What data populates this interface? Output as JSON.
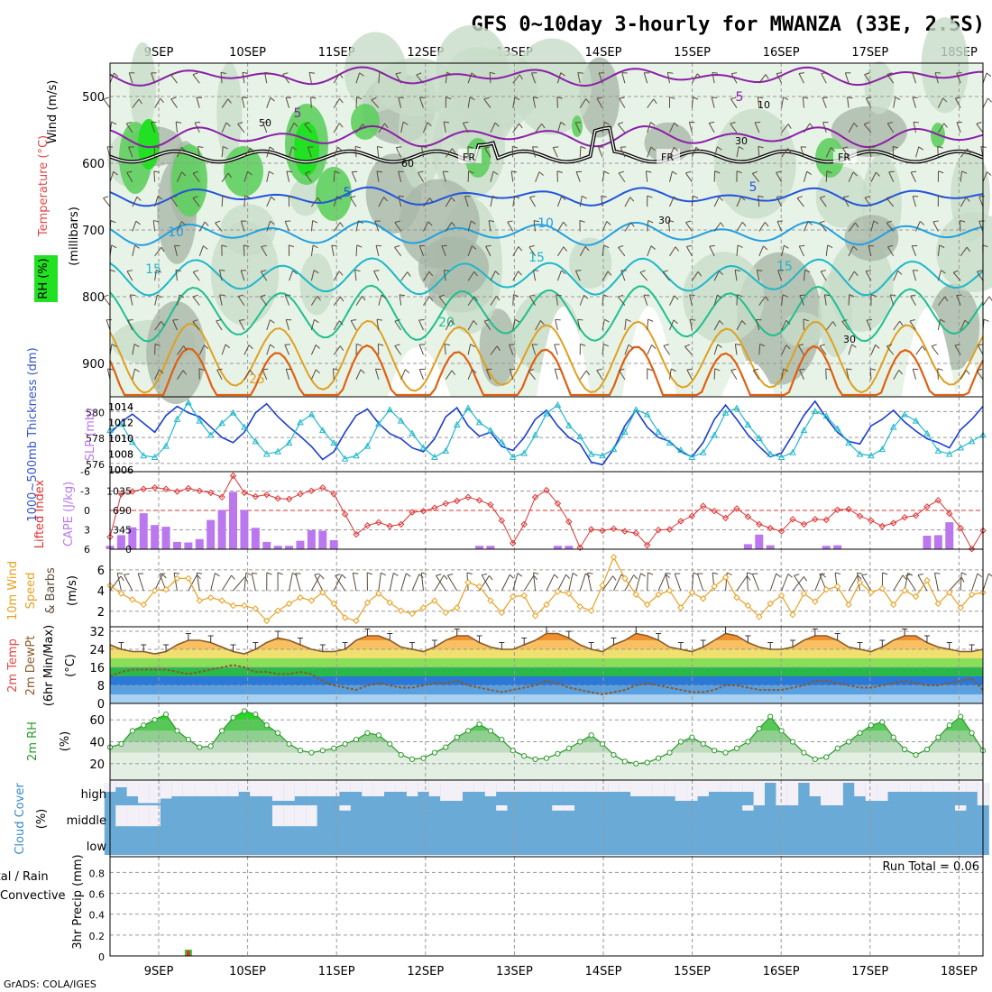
{
  "title": "GFS 0~10day 3-hourly for MWANZA (33E, 2.5S)",
  "credit": "GrADS: COLA/IGES",
  "colors": {
    "rh_light": "#e8f3e8",
    "rh_mid": "#c8dcc8",
    "rh_grey": "#a9b8a9",
    "rh_green": "#5fcf5f",
    "rh_bright": "#22e022",
    "t_purple": "#8b1fa8",
    "t_blue": "#2255dd",
    "t_lightblue": "#22a0e0",
    "t_cyan": "#1db8c8",
    "t_teal": "#1fbf8f",
    "t_orange": "#e0a020",
    "t_darkorange": "#e06010",
    "t_magenta": "#d0107a",
    "freezing": "#000000",
    "thickness": "#1b3fd0",
    "slp": "#22b8cc",
    "lifted": "#dd3333",
    "cape": "#bb77ee",
    "wind_speed": "#e8a020",
    "barb": "#5a4a3a",
    "temp_fill": "#f07a10",
    "dewpt": "#8a5a2a",
    "rh_line": "#2a9a2a",
    "cloud": "#6aaad6",
    "precip_total": "#33cc33",
    "precip_conv": "#dd3333"
  },
  "chart_data": [
    {
      "panel": "upper-air",
      "type": "heatmap",
      "x": [
        "9SEP",
        "10SEP",
        "11SEP",
        "12SEP",
        "13SEP",
        "14SEP",
        "15SEP",
        "16SEP",
        "17SEP",
        "18SEP"
      ],
      "y_ticks": [
        "500",
        "600",
        "700",
        "800",
        "900"
      ],
      "ylabel_parts": [
        "Wind (m/s)",
        "Temperature (°C)",
        "(millibars)",
        "RH (%)"
      ],
      "ylim": [
        1000,
        450
      ],
      "isotherm_labels": [
        {
          "text": "5",
          "level": "near 500mb"
        },
        {
          "text": "5",
          "level": "near 650mb"
        },
        {
          "text": "10",
          "level": "near 700mb"
        },
        {
          "text": "15",
          "level": "near 760mb"
        },
        {
          "text": "20",
          "level": "near 840mb"
        },
        {
          "text": "25",
          "level": "near 930mb"
        }
      ],
      "rh_labels": [
        "50",
        "30",
        "10",
        "60",
        "30",
        "30"
      ],
      "freezing_label": "FR"
    },
    {
      "panel": "thickness-slp",
      "type": "line",
      "ylabel_left": "1000~500mb Thickness (dm)",
      "ylabel_right": "SLP (mb)",
      "left_ticks": [
        "580",
        "578",
        "576"
      ],
      "right_ticks": [
        "1014",
        "1012",
        "1010",
        "1008",
        "1006"
      ],
      "ylim_thickness": [
        575.5,
        581
      ],
      "ylim_slp": [
        1006,
        1015
      ],
      "thickness": [
        578.3,
        579.2,
        579.8,
        579.1,
        578.4,
        579.7,
        580.4,
        579.9,
        579.6,
        578.8,
        578.0,
        577.6,
        578.4,
        579.9,
        580.6,
        579.6,
        578.8,
        578.1,
        577.3,
        576.3,
        576.9,
        578.4,
        579.7,
        580.2,
        579.1,
        578.3,
        577.9,
        577.2,
        576.9,
        577.9,
        579.6,
        580.3,
        578.9,
        578.1,
        578.4,
        577.3,
        577.0,
        578.0,
        579.4,
        580.1,
        578.9,
        578.0,
        577.5,
        576.1,
        575.9,
        577.1,
        578.9,
        580.1,
        578.8,
        578.0,
        577.7,
        576.9,
        576.5,
        577.6,
        579.4,
        580.5,
        579.4,
        578.2,
        577.3,
        576.5,
        576.8,
        578.2,
        579.7,
        580.8,
        579.5,
        578.4,
        577.7,
        577.5,
        578.9,
        579.4,
        580.1,
        579.2,
        578.5,
        577.9,
        577.6,
        577.2,
        578.6,
        579.4,
        580.4
      ],
      "slp": [
        1011,
        1011.8,
        1009.5,
        1007.8,
        1007.6,
        1009,
        1012.4,
        1014.5,
        1012.2,
        1010.4,
        1011.9,
        1013.2,
        1011.4,
        1009.6,
        1008.0,
        1008.3,
        1009.4,
        1012.0,
        1013.0,
        1011.0,
        1009.4,
        1007.4,
        1007.8,
        1009.0,
        1011.8,
        1013.6,
        1012.2,
        1010.6,
        1008.8,
        1007.6,
        1008.4,
        1011.7,
        1013.8,
        1012.0,
        1011.0,
        1009.5,
        1007.6,
        1008.1,
        1010.4,
        1013.1,
        1014.2,
        1011.6,
        1010.2,
        1008.0,
        1007.8,
        1008.6,
        1010.8,
        1013.6,
        1013.0,
        1010.8,
        1009.4,
        1008.5,
        1007.6,
        1008.2,
        1010.4,
        1013.2,
        1013.8,
        1011.7,
        1010.0,
        1008.0,
        1007.6,
        1008.2,
        1011.0,
        1013.4,
        1012.8,
        1011.2,
        1009.4,
        1008.0,
        1007.8,
        1008.6,
        1011.4,
        1013.0,
        1012.2,
        1010.6,
        1008.4,
        1008.0,
        1008.8,
        1009.6,
        1010.4
      ]
    },
    {
      "panel": "stability",
      "type": "bar",
      "ylabel_left": "Lifted Index",
      "ylabel_right": "CAPE (J/kg)",
      "left_ticks": [
        "-6",
        "-3",
        "0",
        "3",
        "6"
      ],
      "right_ticks": [
        "1035",
        "690",
        "345",
        "0"
      ],
      "ylim_lifted": [
        6,
        -6
      ],
      "ylim_cape": [
        0,
        1380
      ],
      "lifted_index": [
        4.2,
        -2.6,
        -3.0,
        -3.4,
        -3.6,
        -3.4,
        -3.0,
        -3.5,
        -3.1,
        -2.8,
        -2.1,
        -5.5,
        -2.8,
        -2.2,
        -2.5,
        -1.9,
        -1.8,
        -2.6,
        -3.1,
        -3.6,
        -2.6,
        0.6,
        3.8,
        2.4,
        1.9,
        2.5,
        2.2,
        0.3,
        0.1,
        -0.4,
        -1.1,
        -1.5,
        -2.1,
        -1.6,
        -0.9,
        1.6,
        5.2,
        2.2,
        -2.1,
        -3.2,
        -1.1,
        1.8,
        5.9,
        3.0,
        3.2,
        2.9,
        3.3,
        3.6,
        5.5,
        3.1,
        3.0,
        1.7,
        0.9,
        -0.7,
        0.1,
        1.2,
        -0.3,
        1.0,
        2.2,
        2.8,
        3.3,
        1.4,
        2.2,
        1.4,
        1.5,
        -0.1,
        -0.2,
        0.9,
        1.6,
        2.5,
        2.0,
        1.1,
        0.8,
        -0.6,
        -1.6,
        0.5,
        2.8,
        6.1,
        3.2
      ],
      "cape": [
        60,
        250,
        390,
        640,
        430,
        400,
        130,
        120,
        180,
        520,
        700,
        1020,
        700,
        380,
        130,
        60,
        60,
        150,
        340,
        330,
        160,
        0,
        0,
        0,
        0,
        0,
        0,
        0,
        0,
        0,
        0,
        0,
        0,
        60,
        60,
        0,
        0,
        0,
        0,
        0,
        60,
        60,
        0,
        0,
        0,
        0,
        0,
        0,
        0,
        0,
        0,
        0,
        0,
        0,
        0,
        0,
        0,
        90,
        260,
        70,
        0,
        0,
        0,
        0,
        60,
        70,
        0,
        0,
        0,
        0,
        0,
        0,
        0,
        240,
        250,
        480,
        0,
        0,
        0
      ]
    },
    {
      "panel": "surface-wind",
      "type": "line",
      "ylabel": [
        "10m Wind",
        "Speed",
        "& Barbs",
        "(m/s)"
      ],
      "y_ticks": [
        "6",
        "4",
        "2"
      ],
      "ylim": [
        0.5,
        8
      ],
      "wind_speed": [
        4.5,
        3.7,
        3.1,
        2.6,
        4.0,
        4.1,
        5.2,
        5.2,
        3.0,
        3.3,
        3.0,
        2.5,
        2.5,
        2.2,
        1.0,
        2.0,
        2.7,
        3.3,
        3.0,
        3.8,
        2.7,
        1.3,
        1.0,
        2.8,
        3.7,
        2.8,
        2.0,
        1.7,
        2.3,
        3.0,
        1.8,
        2.3,
        4.8,
        4.4,
        3.0,
        1.8,
        3.4,
        3.5,
        1.5,
        2.6,
        3.9,
        3.7,
        2.4,
        2.0,
        4.5,
        7.3,
        5.2,
        3.6,
        2.6,
        3.6,
        4.0,
        2.3,
        3.8,
        3.2,
        4.4,
        5.3,
        3.3,
        2.5,
        1.4,
        2.7,
        3.5,
        1.6,
        3.7,
        2.9,
        4.1,
        4.4,
        2.6,
        4.8,
        3.8,
        4.2,
        2.6,
        4.0,
        3.4,
        5.0,
        2.7,
        3.8,
        2.3,
        3.6,
        3.8
      ]
    },
    {
      "panel": "surface-temp",
      "type": "area",
      "ylabel": [
        "2m Temp",
        "2m DewPt",
        "(6hr Min/Max)",
        "(°C)"
      ],
      "y_ticks": [
        "32",
        "24",
        "16",
        "8",
        "0"
      ],
      "ylim": [
        0,
        34
      ],
      "temp": [
        26,
        24,
        23,
        23,
        22,
        23,
        26,
        28,
        28,
        27,
        25,
        23,
        22,
        24,
        27,
        29,
        28,
        26,
        24,
        23,
        23,
        24,
        28,
        30,
        30,
        28,
        25,
        24,
        23,
        25,
        28,
        30,
        30,
        27,
        25,
        24,
        24,
        26,
        28,
        31,
        31,
        29,
        26,
        24,
        23,
        26,
        28,
        31,
        30,
        28,
        25,
        24,
        23,
        25,
        28,
        31,
        30,
        27,
        25,
        24,
        24,
        25,
        28,
        30,
        30,
        28,
        25,
        24,
        23,
        25,
        28,
        30,
        30,
        27,
        25,
        24,
        23,
        23,
        24
      ],
      "dewpt": [
        12,
        14,
        15,
        15,
        15,
        15,
        14,
        13,
        14,
        15,
        16,
        17,
        16,
        14,
        14,
        13,
        13,
        14,
        13,
        10,
        8,
        7,
        6,
        8,
        9,
        8,
        7,
        7,
        8,
        9,
        9,
        10,
        8,
        7,
        6,
        5,
        6,
        7,
        8,
        10,
        9,
        7,
        6,
        5,
        4,
        5,
        6,
        8,
        9,
        8,
        7,
        6,
        5,
        5,
        6,
        8,
        8,
        7,
        6,
        6,
        6,
        7,
        8,
        10,
        10,
        9,
        8,
        7,
        7,
        8,
        9,
        10,
        9,
        8,
        8,
        9,
        10,
        11,
        6
      ]
    },
    {
      "panel": "surface-rh",
      "type": "area",
      "ylabel_main": "2m RH",
      "ylabel_unit": "(%)",
      "y_ticks": [
        "60",
        "40",
        "20"
      ],
      "ylim": [
        5,
        75
      ],
      "rh": [
        35,
        38,
        50,
        55,
        60,
        65,
        50,
        42,
        35,
        36,
        50,
        62,
        68,
        65,
        55,
        48,
        38,
        32,
        30,
        32,
        34,
        38,
        42,
        48,
        46,
        38,
        28,
        24,
        25,
        30,
        35,
        44,
        50,
        56,
        50,
        42,
        32,
        27,
        24,
        25,
        29,
        34,
        40,
        46,
        38,
        28,
        22,
        20,
        21,
        25,
        30,
        40,
        44,
        38,
        32,
        30,
        34,
        40,
        52,
        63,
        50,
        40,
        30,
        24,
        26,
        34,
        40,
        48,
        55,
        58,
        44,
        33,
        28,
        33,
        44,
        55,
        63,
        48,
        32
      ]
    },
    {
      "panel": "cloud-cover",
      "type": "bar",
      "ylabel": [
        "Cloud Cover",
        "(%)"
      ],
      "levels": [
        "high",
        "middle",
        "low"
      ],
      "high": [
        40,
        20,
        60,
        90,
        90,
        70,
        60,
        60,
        60,
        60,
        60,
        60,
        40,
        60,
        60,
        80,
        80,
        60,
        60,
        60,
        60,
        40,
        40,
        60,
        60,
        40,
        40,
        60,
        40,
        60,
        80,
        80,
        40,
        40,
        60,
        40,
        40,
        40,
        40,
        40,
        40,
        40,
        40,
        40,
        40,
        40,
        40,
        60,
        60,
        60,
        60,
        80,
        80,
        60,
        40,
        40,
        40,
        40,
        100,
        0,
        100,
        100,
        0,
        60,
        100,
        100,
        0,
        60,
        80,
        80,
        40,
        40,
        40,
        40,
        40,
        40,
        40,
        40,
        100
      ],
      "middle": [
        0,
        80,
        80,
        80,
        80,
        0,
        0,
        0,
        0,
        0,
        0,
        0,
        0,
        0,
        0,
        80,
        80,
        80,
        80,
        0,
        0,
        20,
        0,
        0,
        0,
        0,
        0,
        0,
        0,
        0,
        0,
        0,
        0,
        0,
        0,
        20,
        0,
        0,
        0,
        0,
        20,
        20,
        0,
        0,
        0,
        0,
        0,
        0,
        0,
        0,
        0,
        0,
        0,
        0,
        0,
        0,
        0,
        20,
        0,
        0,
        0,
        0,
        0,
        0,
        0,
        0,
        0,
        0,
        0,
        0,
        0,
        0,
        0,
        0,
        0,
        0,
        20,
        0,
        0
      ],
      "low": [
        0,
        0,
        0,
        0,
        0,
        0,
        0,
        0,
        0,
        0,
        0,
        0,
        0,
        0,
        0,
        0,
        0,
        0,
        0,
        0,
        0,
        0,
        0,
        0,
        0,
        0,
        0,
        0,
        0,
        0,
        0,
        0,
        0,
        0,
        0,
        0,
        0,
        0,
        0,
        0,
        0,
        0,
        0,
        0,
        0,
        0,
        0,
        0,
        0,
        0,
        0,
        0,
        0,
        0,
        0,
        0,
        0,
        0,
        0,
        0,
        0,
        0,
        0,
        0,
        0,
        0,
        0,
        0,
        0,
        0,
        0,
        0,
        0,
        0,
        0,
        0,
        0,
        0,
        0
      ]
    },
    {
      "panel": "precip",
      "type": "bar",
      "ylabel_main": "3hr Precip (mm)",
      "ylabel_side": [
        "Total / Rain",
        "Convective"
      ],
      "y_ticks": [
        "0.8",
        "0.6",
        "0.4",
        "0.2",
        "0"
      ],
      "ylim": [
        0,
        0.95
      ],
      "run_total": "Run Total = 0.06",
      "total": [
        0,
        0,
        0,
        0,
        0,
        0,
        0,
        0.06,
        0,
        0,
        0,
        0,
        0,
        0,
        0,
        0,
        0,
        0,
        0,
        0,
        0,
        0,
        0,
        0,
        0,
        0,
        0,
        0,
        0,
        0,
        0,
        0,
        0,
        0,
        0,
        0,
        0,
        0,
        0,
        0,
        0,
        0,
        0,
        0,
        0,
        0,
        0,
        0,
        0,
        0,
        0,
        0,
        0,
        0,
        0,
        0,
        0,
        0,
        0,
        0,
        0,
        0,
        0,
        0,
        0,
        0,
        0,
        0,
        0,
        0,
        0,
        0,
        0,
        0,
        0,
        0,
        0,
        0,
        0
      ],
      "convective": [
        0,
        0,
        0,
        0,
        0,
        0,
        0,
        0.05,
        0,
        0,
        0,
        0,
        0,
        0,
        0,
        0,
        0,
        0,
        0,
        0,
        0,
        0,
        0,
        0,
        0,
        0,
        0,
        0,
        0,
        0,
        0,
        0,
        0,
        0,
        0,
        0,
        0,
        0,
        0,
        0,
        0,
        0,
        0,
        0,
        0,
        0,
        0,
        0,
        0,
        0,
        0,
        0,
        0,
        0,
        0,
        0,
        0,
        0,
        0,
        0,
        0,
        0,
        0,
        0,
        0,
        0,
        0,
        0,
        0,
        0,
        0,
        0,
        0,
        0,
        0,
        0,
        0,
        0,
        0
      ]
    }
  ]
}
